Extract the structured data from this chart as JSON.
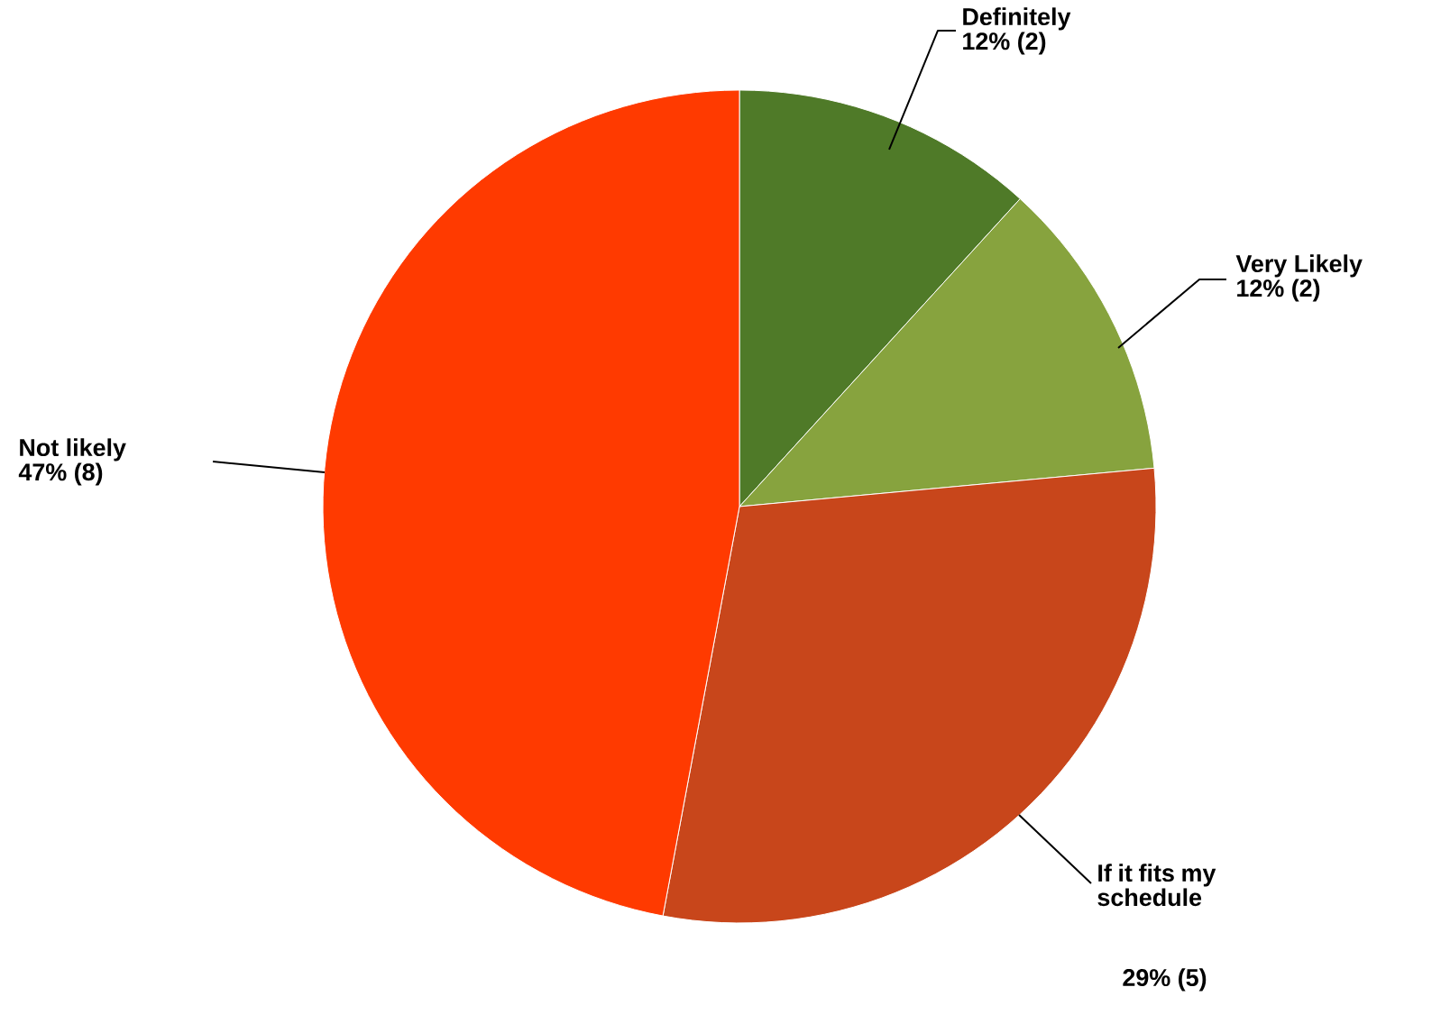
{
  "chart_data": {
    "type": "pie",
    "categories": [
      "Definitely",
      "Very Likely",
      "If it fits my schedule",
      "Not likely"
    ],
    "values": [
      2,
      2,
      5,
      8
    ],
    "value_labels": [
      "12% (2)",
      "12% (2)",
      "29% (5)",
      "47% (8)"
    ],
    "colors": [
      "#4f7a28",
      "#87a33e",
      "#c8461b",
      "#ff3a00"
    ]
  }
}
